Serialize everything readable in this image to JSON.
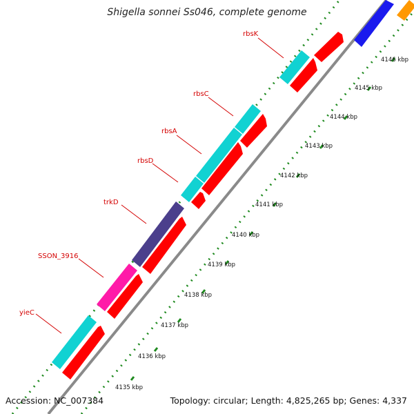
{
  "title": "Shigella sonnei Ss046, complete genome",
  "accession": "Accession: NC_007384",
  "summary": "Topology: circular; Length: 4,825,265 bp; Genes: 4,337",
  "scale_labels": [
    "4135 kbp",
    "4136 kbp",
    "4137 kbp",
    "4138 kbp",
    "4139 kbp",
    "4140 kbp",
    "4141 kbp",
    "4142 kbp",
    "4143 kbp",
    "4144 kbp",
    "4145 kbp",
    "4146 kbp"
  ],
  "gene_labels": [
    "rbsK",
    "rbsC",
    "rbsA",
    "rbsD",
    "trkD",
    "SSON_3916",
    "yieC"
  ],
  "colors": {
    "backbone": "#8c8c8c",
    "cds": "#ff0000",
    "gene_teal": "#11d2d2",
    "gene_indigo": "#4b3f8c",
    "gene_pink": "#ff1aa8",
    "gene_blue": "#1a1aee",
    "gene_orange": "#ff9900",
    "ticks": "#1f8a1f",
    "label_red": "#d40000"
  }
}
